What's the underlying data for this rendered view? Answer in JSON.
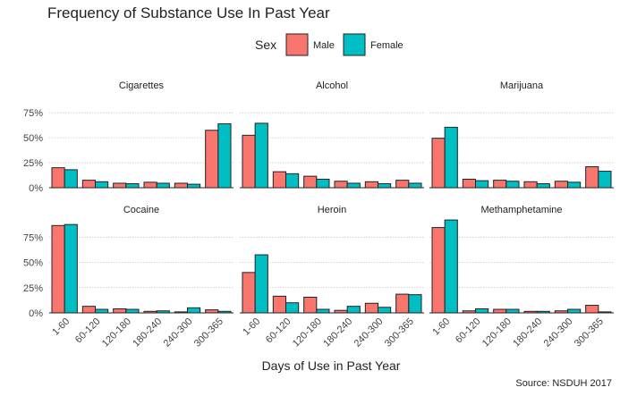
{
  "chart_data": {
    "type": "bar",
    "title": "Frequency of Substance Use In Past Year",
    "xlabel": "Days of Use in Past Year",
    "ylabel": "",
    "caption": "Source: NSDUH 2017",
    "legend": {
      "title": "Sex",
      "placement": "top-center",
      "entries": [
        {
          "name": "Male",
          "color": "#F8766D"
        },
        {
          "name": "Female",
          "color": "#00BFC4"
        }
      ]
    },
    "ylim": [
      0,
      0.85
    ],
    "yticks": [
      0,
      0.25,
      0.5,
      0.75
    ],
    "ytick_labels": [
      "0%",
      "25%",
      "50%",
      "75%"
    ],
    "categories": [
      "1-60",
      "60-120",
      "120-180",
      "180-240",
      "240-300",
      "300-365"
    ],
    "grid": true,
    "facets": [
      {
        "name": "Cigarettes",
        "series": [
          {
            "name": "Male",
            "values": [
              0.2,
              0.075,
              0.045,
              0.055,
              0.045,
              0.575
            ]
          },
          {
            "name": "Female",
            "values": [
              0.18,
              0.06,
              0.04,
              0.045,
              0.035,
              0.64
            ]
          }
        ]
      },
      {
        "name": "Alcohol",
        "series": [
          {
            "name": "Male",
            "values": [
              0.525,
              0.16,
              0.115,
              0.065,
              0.06,
              0.075
            ]
          },
          {
            "name": "Female",
            "values": [
              0.645,
              0.14,
              0.085,
              0.045,
              0.04,
              0.045
            ]
          }
        ]
      },
      {
        "name": "Marijuana",
        "series": [
          {
            "name": "Male",
            "values": [
              0.495,
              0.085,
              0.075,
              0.06,
              0.065,
              0.21
            ]
          },
          {
            "name": "Female",
            "values": [
              0.605,
              0.07,
              0.065,
              0.04,
              0.055,
              0.165
            ]
          }
        ]
      },
      {
        "name": "Cocaine",
        "series": [
          {
            "name": "Male",
            "values": [
              0.865,
              0.065,
              0.04,
              0.015,
              0.01,
              0.03
            ]
          },
          {
            "name": "Female",
            "values": [
              0.875,
              0.035,
              0.035,
              0.02,
              0.05,
              0.015
            ]
          }
        ]
      },
      {
        "name": "Heroin",
        "series": [
          {
            "name": "Male",
            "values": [
              0.4,
              0.165,
              0.155,
              0.025,
              0.095,
              0.185
            ]
          },
          {
            "name": "Female",
            "values": [
              0.575,
              0.1,
              0.035,
              0.065,
              0.055,
              0.18
            ]
          }
        ]
      },
      {
        "name": "Methamphetamine",
        "series": [
          {
            "name": "Male",
            "values": [
              0.845,
              0.02,
              0.035,
              0.015,
              0.02,
              0.075
            ]
          },
          {
            "name": "Female",
            "values": [
              0.92,
              0.04,
              0.035,
              0.015,
              0.035,
              0.01
            ]
          }
        ]
      }
    ]
  }
}
